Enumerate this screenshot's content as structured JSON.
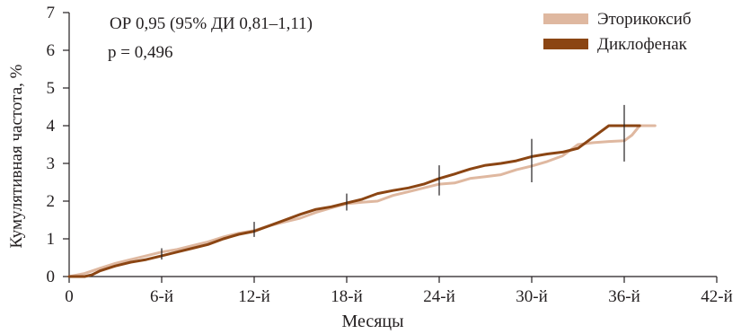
{
  "chart_data": {
    "type": "line",
    "title": "",
    "xlabel": "Месяцы",
    "ylabel": "Кумулятивная частота, %",
    "xlim": [
      0,
      42
    ],
    "ylim": [
      0,
      7
    ],
    "xticks": [
      0,
      6,
      12,
      18,
      24,
      30,
      36,
      42
    ],
    "xtick_labels": [
      "0",
      "6-й",
      "12-й",
      "18-й",
      "24-й",
      "30-й",
      "36-й",
      "42-й"
    ],
    "yticks": [
      0,
      1,
      2,
      3,
      4,
      5,
      6,
      7
    ],
    "ytick_labels": [
      "0",
      "1",
      "2",
      "3",
      "4",
      "5",
      "6",
      "7"
    ],
    "grid": false,
    "legend_position": "top-right",
    "annotations": {
      "hr_text": "ОР 0,95 (95% ДИ 0,81–1,11)",
      "p_text": "p = 0,496"
    },
    "series": [
      {
        "name": "Эторикоксиб",
        "color": "#dfb8a0",
        "x": [
          0,
          1,
          2,
          3,
          4,
          5,
          6,
          7,
          8,
          9,
          10,
          11,
          12,
          13,
          14,
          15,
          16,
          17,
          18,
          19,
          20,
          21,
          22,
          23,
          24,
          25,
          26,
          27,
          28,
          29,
          30,
          31,
          32,
          33,
          34,
          35,
          36,
          36.5,
          37,
          38
        ],
        "y": [
          0,
          0.08,
          0.22,
          0.35,
          0.45,
          0.55,
          0.65,
          0.72,
          0.82,
          0.92,
          1.05,
          1.15,
          1.22,
          1.35,
          1.45,
          1.55,
          1.7,
          1.82,
          1.93,
          1.97,
          2.0,
          2.15,
          2.25,
          2.35,
          2.45,
          2.48,
          2.6,
          2.65,
          2.7,
          2.83,
          2.93,
          3.05,
          3.2,
          3.5,
          3.55,
          3.58,
          3.6,
          3.75,
          4.0,
          4.0
        ]
      },
      {
        "name": "Диклофенак",
        "color": "#8b4513",
        "x": [
          0,
          1,
          1.5,
          2,
          3,
          4,
          5,
          6,
          7,
          8,
          9,
          10,
          11,
          12,
          13,
          14,
          15,
          16,
          17,
          18,
          19,
          20,
          21,
          22,
          23,
          24,
          25,
          26,
          27,
          28,
          29,
          30,
          31,
          32,
          33,
          34,
          35,
          36,
          37
        ],
        "y": [
          0,
          0.0,
          0.05,
          0.15,
          0.28,
          0.38,
          0.45,
          0.55,
          0.65,
          0.75,
          0.85,
          1.0,
          1.12,
          1.2,
          1.35,
          1.5,
          1.65,
          1.78,
          1.85,
          1.95,
          2.05,
          2.2,
          2.28,
          2.35,
          2.45,
          2.6,
          2.72,
          2.85,
          2.95,
          3.0,
          3.07,
          3.18,
          3.25,
          3.3,
          3.4,
          3.7,
          4.0,
          4.0,
          4.0
        ]
      }
    ],
    "error_bars": {
      "x": [
        6,
        12,
        18,
        24,
        30,
        36
      ],
      "lower": [
        0.45,
        1.05,
        1.75,
        2.15,
        2.5,
        3.05
      ],
      "upper": [
        0.75,
        1.45,
        2.2,
        2.95,
        3.65,
        4.55
      ]
    }
  }
}
